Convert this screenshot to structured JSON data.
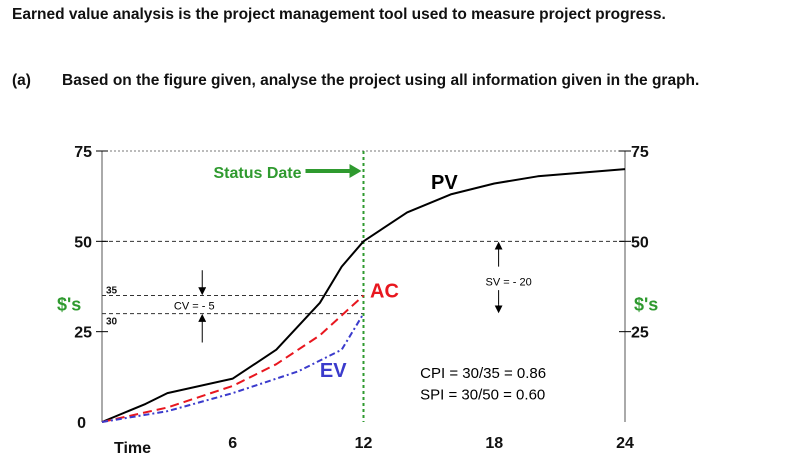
{
  "question": {
    "intro": "Earned value analysis is the project management tool used to measure project progress.",
    "part_label": "(a)",
    "part_text": "Based on the figure given, analyse the project using all information given in the graph."
  },
  "chart_data": {
    "type": "line",
    "xlabel": "Time",
    "ylabel": "$'s",
    "xlim": [
      0,
      24
    ],
    "ylim": [
      0,
      75
    ],
    "x_ticks": [
      "6",
      "12",
      "18",
      "24"
    ],
    "y_ticks_left": [
      "0",
      "25",
      "50",
      "75"
    ],
    "y_ticks_right": [
      "25",
      "50",
      "75"
    ],
    "grid": false,
    "series": [
      {
        "name": "PV",
        "color": "#000000",
        "style": "solid",
        "x": [
          0,
          2,
          3,
          6,
          8,
          10,
          11,
          12,
          14,
          16,
          18,
          20,
          24
        ],
        "y": [
          0,
          5,
          8,
          12,
          20,
          33,
          43,
          50,
          58,
          63,
          66,
          68,
          70
        ]
      },
      {
        "name": "AC",
        "color": "#e8171f",
        "style": "dashed",
        "x": [
          0,
          3,
          6,
          8,
          10,
          12
        ],
        "y": [
          0,
          4,
          10,
          16,
          24,
          35
        ]
      },
      {
        "name": "EV",
        "color": "#3b3bcc",
        "style": "dashed",
        "x": [
          0,
          3,
          6,
          9,
          11,
          12
        ],
        "y": [
          0,
          3,
          8,
          14,
          20,
          30
        ]
      }
    ],
    "status_date": {
      "x": 12,
      "label": "Status Date",
      "color": "#2f9a2f"
    },
    "reference_levels": [
      {
        "y": 50
      },
      {
        "y": 35,
        "label": "35"
      },
      {
        "y": 30,
        "label": "30"
      }
    ],
    "annotations": {
      "cv": "CV = - 5",
      "sv": "SV = - 20",
      "cpi": "CPI = 30/35 = 0.86",
      "spi": "SPI = 30/50 = 0.60"
    }
  }
}
